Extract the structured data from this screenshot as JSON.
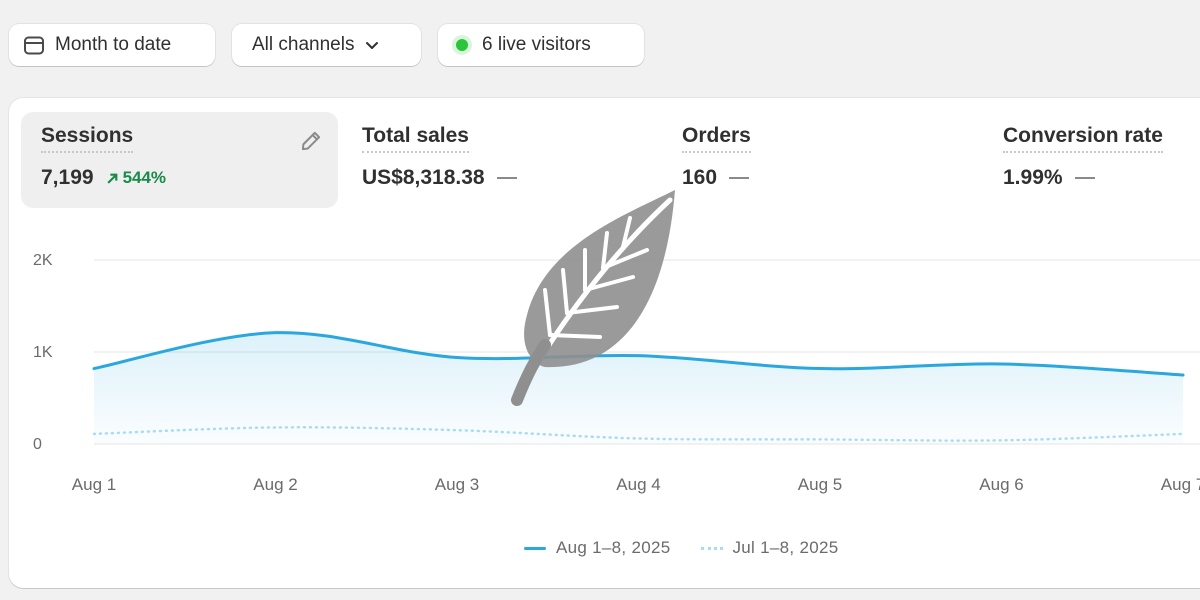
{
  "filters": {
    "date_label": "Month to date",
    "channel_label": "All channels",
    "live_label": "6 live visitors"
  },
  "metrics": [
    {
      "label": "Sessions",
      "value": "7,199",
      "change": "544%"
    },
    {
      "label": "Total sales",
      "value": "US$8,318.38"
    },
    {
      "label": "Orders",
      "value": "160"
    },
    {
      "label": "Conversion rate",
      "value": "1.99%"
    }
  ],
  "colors": {
    "primary_line": "#2aa7df",
    "comparison_line": "#a9dbf2",
    "positive": "#1a8a4a",
    "live": "#29c53b"
  },
  "chart_data": {
    "type": "line",
    "categories": [
      "Aug 1",
      "Aug 2",
      "Aug 3",
      "Aug 4",
      "Aug 5",
      "Aug 6",
      "Aug 7"
    ],
    "y_ticks": [
      "2K",
      "1K",
      "0"
    ],
    "ylim": [
      0,
      2000
    ],
    "grid": true,
    "legend_position": "bottom-center",
    "series": [
      {
        "name": "Aug 1–8, 2025",
        "style": "solid",
        "values": [
          820,
          1210,
          940,
          960,
          820,
          870,
          750
        ]
      },
      {
        "name": "Jul 1–8, 2025",
        "style": "dotted",
        "values": [
          110,
          180,
          150,
          60,
          50,
          40,
          110
        ]
      }
    ]
  }
}
